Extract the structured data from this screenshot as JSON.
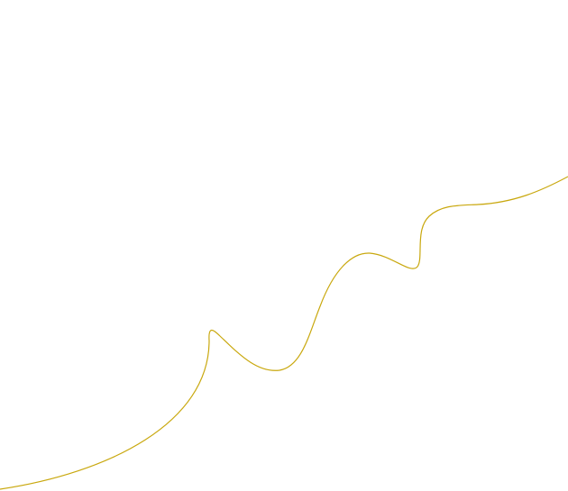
{
  "curve": {
    "stroke_color": "#c9a80e",
    "background_color": "#ffffff"
  }
}
